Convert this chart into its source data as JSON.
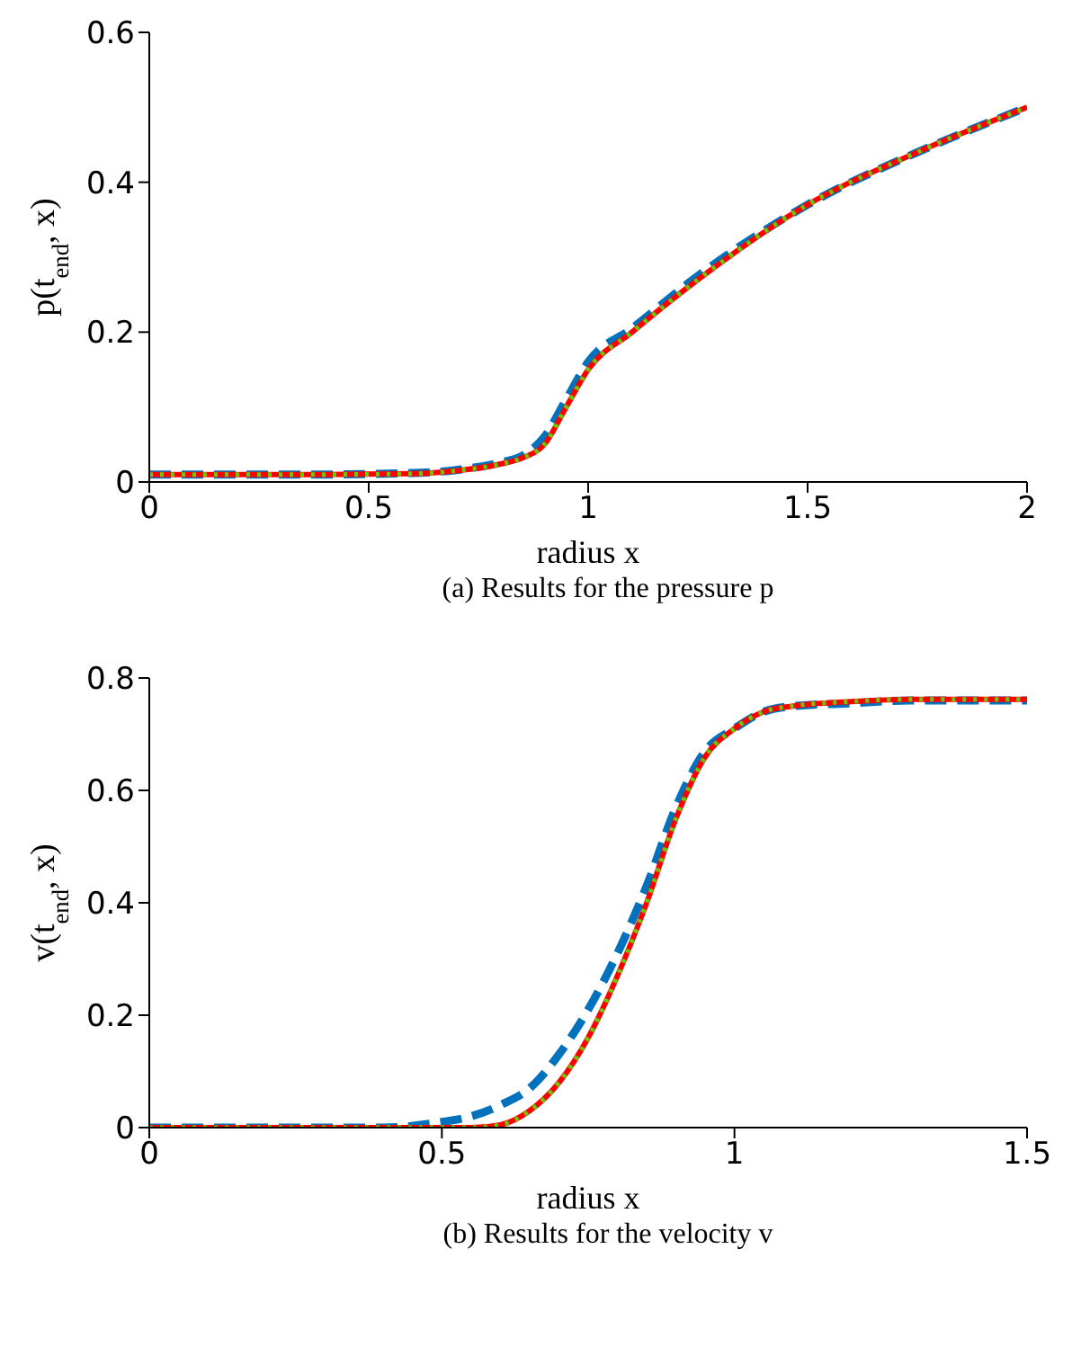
{
  "chart_data": [
    {
      "type": "line",
      "xlabel": "radius x",
      "ylabel": "p(t$_{end}$, x)",
      "annotations": [
        "(a) Results for the pressure p"
      ],
      "x": [
        0,
        0.2,
        0.4,
        0.6,
        0.7,
        0.8,
        0.85,
        0.9,
        0.95,
        1.0,
        1.1,
        1.25,
        1.5,
        1.75,
        2.0
      ],
      "xlim": [
        0,
        2
      ],
      "xticks": [
        0,
        0.5,
        1,
        1.5,
        2
      ],
      "ylim": [
        0,
        0.6
      ],
      "yticks": [
        0,
        0.2,
        0.4,
        0.6
      ],
      "series": [
        {
          "color": "#0072bd",
          "line_style": "dashed",
          "values": [
            0.01,
            0.01,
            0.01,
            0.012,
            0.016,
            0.026,
            0.035,
            0.06,
            0.11,
            0.16,
            0.205,
            0.275,
            0.37,
            0.44,
            0.5
          ]
        },
        {
          "color": "#ff0000",
          "line_style": "solid",
          "values": [
            0.01,
            0.01,
            0.01,
            0.011,
            0.015,
            0.024,
            0.032,
            0.05,
            0.1,
            0.15,
            0.2,
            0.27,
            0.37,
            0.44,
            0.5
          ]
        },
        {
          "color": "#66cc00",
          "line_style": "dotted",
          "values": [
            0.01,
            0.01,
            0.01,
            0.011,
            0.015,
            0.024,
            0.032,
            0.05,
            0.1,
            0.15,
            0.2,
            0.27,
            0.37,
            0.44,
            0.5
          ]
        }
      ]
    },
    {
      "type": "line",
      "xlabel": "radius x",
      "ylabel": "v(t$_{end}$, x)",
      "annotations": [
        "(b) Results for the velocity v"
      ],
      "x": [
        0,
        0.2,
        0.4,
        0.5,
        0.55,
        0.6,
        0.65,
        0.7,
        0.75,
        0.8,
        0.85,
        0.9,
        0.95,
        1.0,
        1.05,
        1.1,
        1.2,
        1.3,
        1.4,
        1.5
      ],
      "xlim": [
        0,
        1.5
      ],
      "xticks": [
        0,
        0.5,
        1,
        1.5
      ],
      "ylim": [
        0,
        0.8
      ],
      "yticks": [
        0,
        0.2,
        0.4,
        0.6,
        0.8
      ],
      "series": [
        {
          "color": "#0072bd",
          "line_style": "dashed",
          "values": [
            0,
            0,
            0,
            0.01,
            0.02,
            0.04,
            0.07,
            0.13,
            0.21,
            0.31,
            0.43,
            0.57,
            0.67,
            0.71,
            0.74,
            0.75,
            0.755,
            0.76,
            0.76,
            0.76
          ]
        },
        {
          "color": "#ff0000",
          "line_style": "solid",
          "values": [
            0,
            0,
            0,
            0,
            0,
            0.005,
            0.03,
            0.08,
            0.16,
            0.27,
            0.4,
            0.55,
            0.66,
            0.71,
            0.74,
            0.75,
            0.758,
            0.762,
            0.762,
            0.762
          ]
        },
        {
          "color": "#66cc00",
          "line_style": "dotted",
          "values": [
            0,
            0,
            0,
            0,
            0,
            0.005,
            0.03,
            0.08,
            0.16,
            0.27,
            0.4,
            0.55,
            0.66,
            0.71,
            0.74,
            0.75,
            0.758,
            0.762,
            0.762,
            0.762
          ]
        }
      ]
    }
  ]
}
